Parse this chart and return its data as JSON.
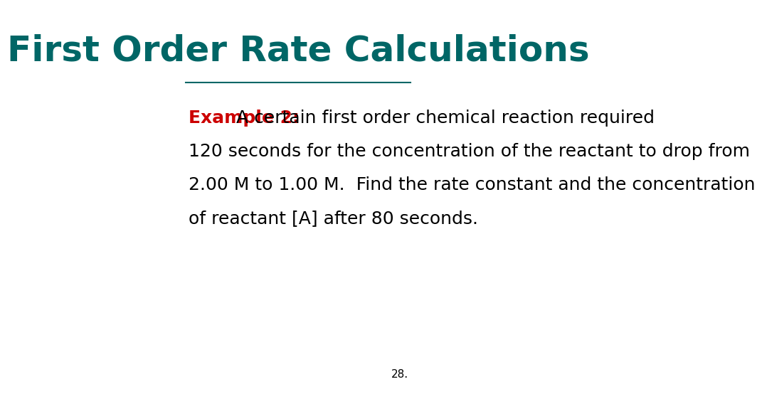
{
  "title": "First Order Rate Calculations",
  "title_color": "#006666",
  "title_fontsize": 36,
  "title_bold": true,
  "example_label": "Example 2:",
  "example_label_color": "#cc0000",
  "example_label_fontsize": 18,
  "example_label_bold": true,
  "line1_suffix": "  A certain first order chemical reaction required",
  "line2": "120 seconds for the concentration of the reactant to drop from",
  "line3": "2.00 M to 1.00 M.  Find the rate constant and the concentration",
  "line4": "of reactant [A] after 80 seconds.",
  "body_color": "#000000",
  "body_fontsize": 18,
  "page_number": "28.",
  "page_number_fontsize": 11,
  "background_color": "#ffffff"
}
